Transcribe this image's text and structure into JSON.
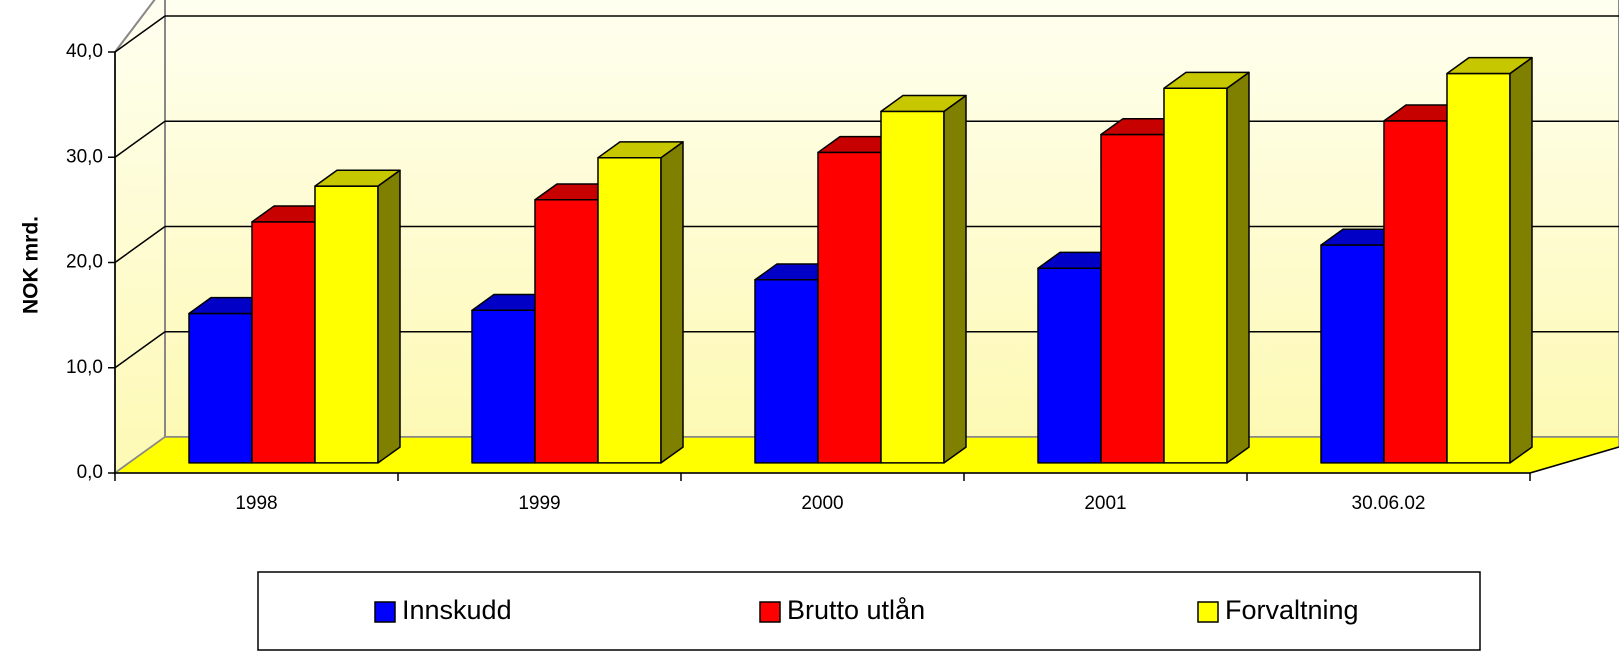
{
  "chart_data": {
    "type": "bar3d",
    "y_label": "NOK mrd.",
    "categories": [
      "1998",
      "1999",
      "2000",
      "2001",
      "30.06.02"
    ],
    "series": [
      {
        "name": "Innskudd",
        "color": "#0000ff",
        "values": [
          14.2,
          14.5,
          17.4,
          18.5,
          20.7
        ]
      },
      {
        "name": "Brutto utlån",
        "color": "#ff0000",
        "values": [
          22.9,
          25.0,
          29.5,
          31.2,
          32.5
        ]
      },
      {
        "name": "Forvaltning",
        "color": "#ffff00",
        "values": [
          26.3,
          29.0,
          33.4,
          35.6,
          37.0
        ]
      }
    ],
    "ylim": [
      0,
      40
    ],
    "yticks": [
      {
        "value": 0,
        "label": "0,0"
      },
      {
        "value": 10,
        "label": "10,0"
      },
      {
        "value": 20,
        "label": "20,0"
      },
      {
        "value": 30,
        "label": "30,0"
      },
      {
        "value": 40,
        "label": "40,0"
      }
    ],
    "grid": true,
    "legend": "bottom"
  }
}
